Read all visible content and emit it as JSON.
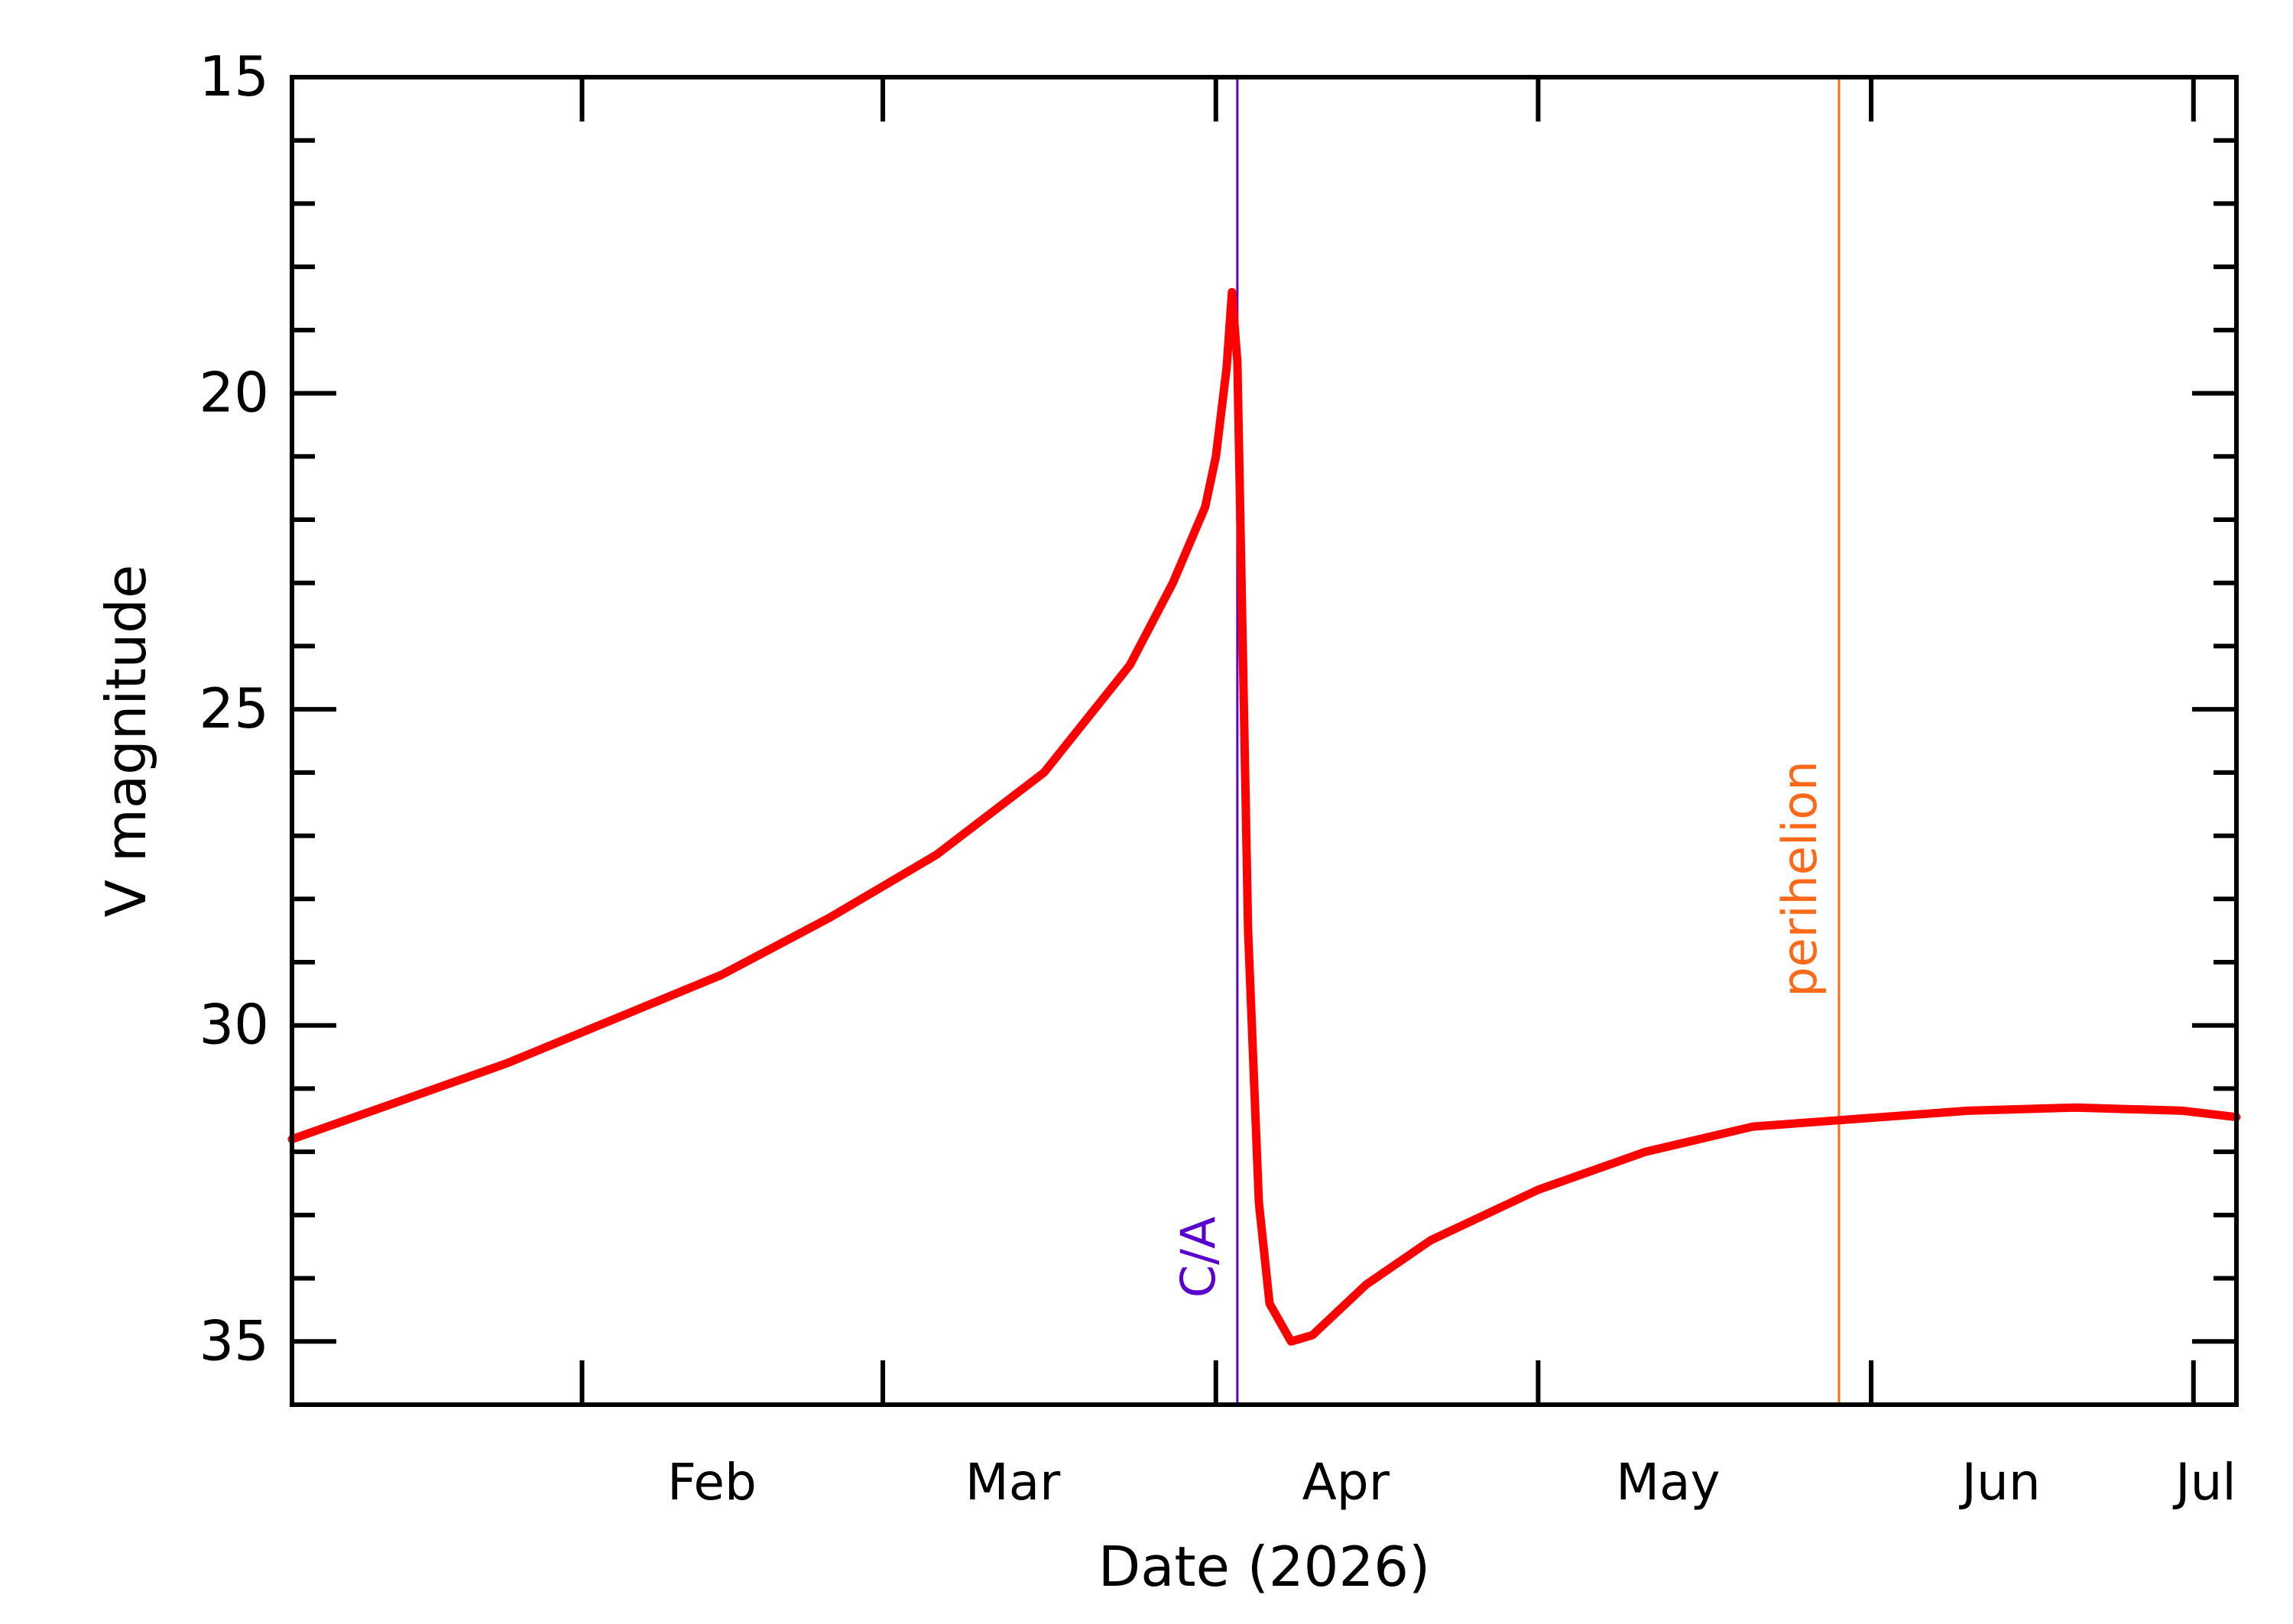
{
  "chart_data": {
    "type": "line",
    "xlabel": "Date (2026)",
    "ylabel": "V magnitude",
    "x_range": [
      "2026-01-05",
      "2026-07-05"
    ],
    "ylim": [
      36,
      15
    ],
    "y_inverted": true,
    "x_tick_labels": [
      {
        "date": "2026-02-01",
        "label": "Feb"
      },
      {
        "date": "2026-03-01",
        "label": "Mar"
      },
      {
        "date": "2026-04-01",
        "label": "Apr"
      },
      {
        "date": "2026-05-01",
        "label": "May"
      },
      {
        "date": "2026-06-01",
        "label": "Jun"
      },
      {
        "date": "2026-07-01",
        "label": "Jul"
      }
    ],
    "y_ticks": [
      15,
      20,
      25,
      30,
      35
    ],
    "y_tick_labels": [
      "15",
      "20",
      "25",
      "30",
      "35"
    ],
    "series": [
      {
        "color": "#ff0000",
        "points": [
          [
            "2026-01-05",
            31.8
          ],
          [
            "2026-01-15",
            31.2
          ],
          [
            "2026-01-25",
            30.6
          ],
          [
            "2026-02-04",
            29.9
          ],
          [
            "2026-02-14",
            29.2
          ],
          [
            "2026-02-24",
            28.3
          ],
          [
            "2026-03-06",
            27.3
          ],
          [
            "2026-03-16",
            26.0
          ],
          [
            "2026-03-24",
            24.3
          ],
          [
            "2026-03-28",
            23.0
          ],
          [
            "2026-03-31",
            21.8
          ],
          [
            "2026-04-01",
            21.0
          ],
          [
            "2026-04-02",
            19.6
          ],
          [
            "2026-04-02T12:00",
            18.4
          ],
          [
            "2026-04-03",
            19.5
          ],
          [
            "2026-04-04",
            28.5
          ],
          [
            "2026-04-05",
            32.8
          ],
          [
            "2026-04-06",
            34.4
          ],
          [
            "2026-04-08",
            35.0
          ],
          [
            "2026-04-10",
            34.9
          ],
          [
            "2026-04-15",
            34.1
          ],
          [
            "2026-04-21",
            33.4
          ],
          [
            "2026-05-01",
            32.6
          ],
          [
            "2026-05-11",
            32.0
          ],
          [
            "2026-05-21",
            31.6
          ],
          [
            "2026-05-29",
            31.5
          ],
          [
            "2026-06-10",
            31.35
          ],
          [
            "2026-06-20",
            31.3
          ],
          [
            "2026-06-30",
            31.35
          ],
          [
            "2026-07-05",
            31.45
          ]
        ]
      }
    ],
    "vlines": [
      {
        "label": "C/A",
        "date": "2026-04-03",
        "color": "#5a00cc"
      },
      {
        "label": "perihelion",
        "date": "2026-05-29",
        "color": "#ff6a1a"
      }
    ]
  }
}
